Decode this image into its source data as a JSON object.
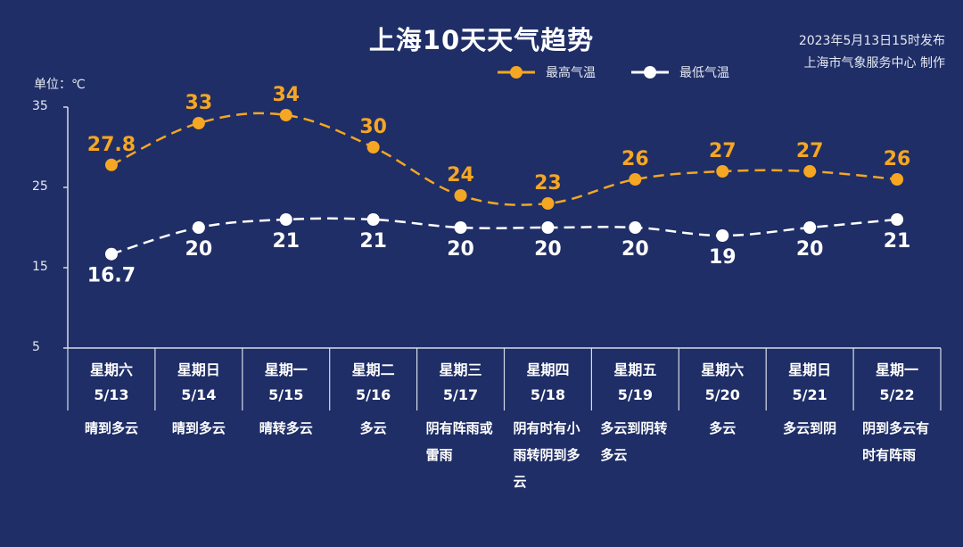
{
  "title": "上海10天天气趋势",
  "issuer": {
    "issued": "2023年5月13日15时发布",
    "producer": "上海市气象服务中心 制作"
  },
  "unit_label": "单位：℃",
  "legend": {
    "high": "最高气温",
    "low": "最低气温"
  },
  "colors": {
    "background": "#1f2e66",
    "high": "#f5a623",
    "low": "#ffffff",
    "axis": "#d7dbe8"
  },
  "days": [
    {
      "day": "星期六",
      "date": "5/13",
      "weather": "晴到多云"
    },
    {
      "day": "星期日",
      "date": "5/14",
      "weather": "晴到多云"
    },
    {
      "day": "星期一",
      "date": "5/15",
      "weather": "晴转多云"
    },
    {
      "day": "星期二",
      "date": "5/16",
      "weather": "多云"
    },
    {
      "day": "星期三",
      "date": "5/17",
      "weather": "阴有阵雨或雷雨"
    },
    {
      "day": "星期四",
      "date": "5/18",
      "weather": "阴有时有小雨转阴到多云"
    },
    {
      "day": "星期五",
      "date": "5/19",
      "weather": "多云到阴转多云"
    },
    {
      "day": "星期六",
      "date": "5/20",
      "weather": "多云"
    },
    {
      "day": "星期日",
      "date": "5/21",
      "weather": "多云到阴"
    },
    {
      "day": "星期一",
      "date": "5/22",
      "weather": "阴到多云有时有阵雨"
    }
  ],
  "chart_data": {
    "type": "line",
    "title": "上海10天天气趋势",
    "ylabel": "单位：℃",
    "xlabel": "",
    "categories": [
      "5/13",
      "5/14",
      "5/15",
      "5/16",
      "5/17",
      "5/18",
      "5/19",
      "5/20",
      "5/21",
      "5/22"
    ],
    "series": [
      {
        "name": "最高气温",
        "values": [
          27.8,
          33,
          34,
          30,
          24,
          23,
          26,
          27,
          27,
          26
        ],
        "labels": [
          "27.8",
          "33",
          "34",
          "30",
          "24",
          "23",
          "26",
          "27",
          "27",
          "26"
        ]
      },
      {
        "name": "最低气温",
        "values": [
          16.7,
          20,
          21,
          21,
          20,
          20,
          20,
          19,
          20,
          21
        ],
        "labels": [
          "16.7",
          "20",
          "21",
          "21",
          "20",
          "20",
          "20",
          "19",
          "20",
          "21"
        ]
      }
    ],
    "yticks": [
      5,
      15,
      25,
      35
    ],
    "ylim": [
      5,
      35
    ],
    "grid": false,
    "legend_position": "top-center",
    "line_style": "dashed-smooth"
  }
}
